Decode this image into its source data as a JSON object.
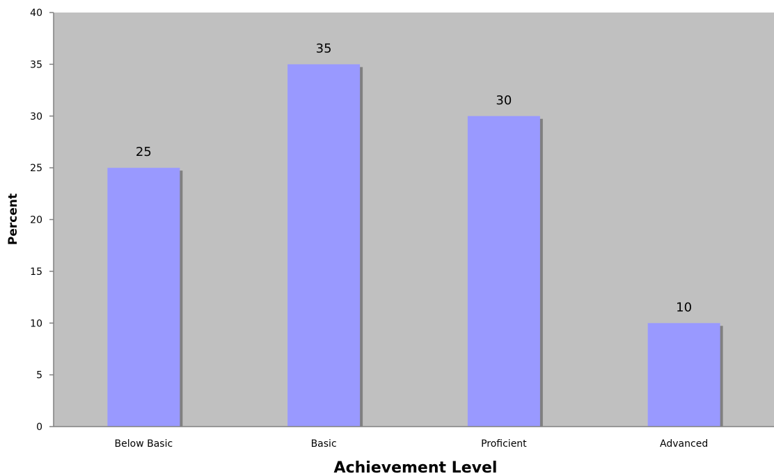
{
  "chart_data": {
    "type": "bar",
    "categories": [
      "Below Basic",
      "Basic",
      "Proficient",
      "Advanced"
    ],
    "values": [
      25,
      35,
      30,
      10
    ],
    "data_labels": [
      "25",
      "35",
      "30",
      "10"
    ],
    "xlabel": "Achievement Level",
    "ylabel": "Percent",
    "ylim": [
      0,
      40
    ],
    "yticks": [
      0,
      5,
      10,
      15,
      20,
      25,
      30,
      35,
      40
    ],
    "grid": false,
    "legend": "none",
    "colors": {
      "bar": "#9999ff",
      "bar_shadow": "#808080",
      "plot_background": "#c0c0c0",
      "axis": "#808080"
    }
  }
}
